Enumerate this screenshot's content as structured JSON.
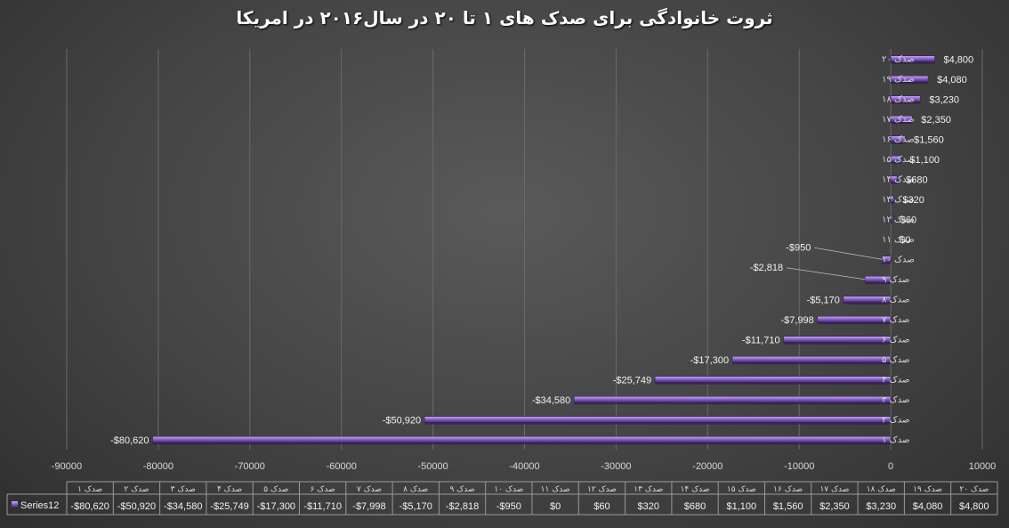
{
  "chart_data": {
    "type": "bar",
    "orientation": "horizontal",
    "title": "ثروت خانوادگی برای صدک های ۱ تا ۲۰ در  سال۲۰۱۶ در امریکا",
    "categories": [
      "صدک ۱",
      "صدک ۲",
      "صدک ۳",
      "صدک ۴",
      "صدک ۵",
      "صدک ۶",
      "صدک ۷",
      "صدک ۸",
      "صدک ۹",
      "صدک ۱۰",
      "صدک ۱۱",
      "صدک ۱۲",
      "صدک ۱۳",
      "صدک ۱۴",
      "صدک ۱۵",
      "صدک ۱۶",
      "صدک ۱۷",
      "صدک ۱۸",
      "صدک ۱۹",
      "صدک ۲۰"
    ],
    "series": [
      {
        "name": "Series12",
        "values": [
          -80620,
          -50920,
          -34580,
          -25749,
          -17300,
          -11710,
          -7998,
          -5170,
          -2818,
          -950,
          0,
          60,
          320,
          680,
          1100,
          1560,
          2350,
          3230,
          4080,
          4800
        ],
        "labels": [
          "-$80,620",
          "-$50,920",
          "-$34,580",
          "-$25,749",
          "-$17,300",
          "-$11,710",
          "-$7,998",
          "-$5,170",
          "-$2,818",
          "-$950",
          "$0",
          "$60",
          "$320",
          "$680",
          "$1,100",
          "$1,560",
          "$2,350",
          "$3,230",
          "$4,080",
          "$4,800"
        ]
      }
    ],
    "xlim": [
      -90000,
      10000
    ],
    "xticks": [
      -90000,
      -80000,
      -70000,
      -60000,
      -50000,
      -40000,
      -30000,
      -20000,
      -10000,
      0,
      10000
    ],
    "xtick_labels": [
      "-90000",
      "-80000",
      "-70000",
      "-60000",
      "-50000",
      "-40000",
      "-30000",
      "-20000",
      "-10000",
      "0",
      "10000"
    ],
    "grid": true,
    "data_table": true,
    "colors": {
      "bar": "#8a63c8",
      "bar_dark": "#4b2e80",
      "bar_light": "#b89ae6",
      "grid": "#6a6a6a",
      "table_line": "#9a9a9a"
    }
  }
}
